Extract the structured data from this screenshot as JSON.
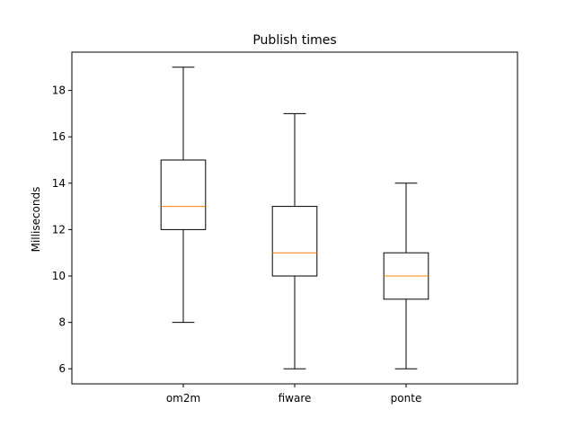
{
  "chart_data": {
    "type": "box",
    "title": "Publish times",
    "xlabel": "",
    "ylabel": "Milliseconds",
    "categories": [
      "om2m",
      "fiware",
      "ponte"
    ],
    "boxes": [
      {
        "name": "om2m",
        "whisker_low": 8,
        "q1": 12,
        "median": 13,
        "q3": 15,
        "whisker_high": 19
      },
      {
        "name": "fiware",
        "whisker_low": 6,
        "q1": 10,
        "median": 11,
        "q3": 13,
        "whisker_high": 17
      },
      {
        "name": "ponte",
        "whisker_low": 6,
        "q1": 9,
        "median": 10,
        "q3": 11,
        "whisker_high": 14
      }
    ],
    "ylim": [
      5.35,
      19.65
    ],
    "yticks": [
      6,
      8,
      10,
      12,
      14,
      16,
      18
    ],
    "grid": false,
    "colors": {
      "box": "#000000",
      "median": "#ff7f0e",
      "frame": "#000000"
    }
  }
}
